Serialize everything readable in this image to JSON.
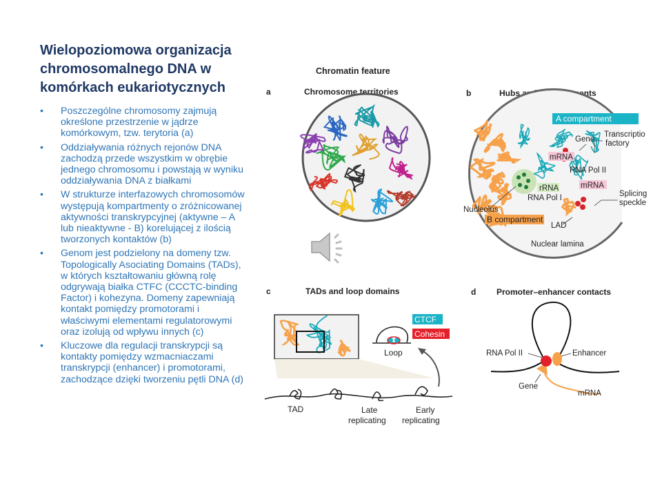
{
  "slide": {
    "title": "Wielopoziomowa organizacja chromosomalnego DNA w komórkach eukariotycznych",
    "bullet_char": "•",
    "bullets": [
      "Poszczególne chromosomy zajmują określone przestrzenie w jądrze komórkowym, tzw. terytoria (a)",
      "Oddziaływania różnych rejonów DNA zachodzą przede wszystkim w obrębie jednego chromosomu i powstają w wyniku oddziaływania DNA z białkami",
      "W strukturze interfazowych chromosomów występują kompartmenty o zróżnicowanej aktywności transkrypcyjnej (aktywne – A lub nieaktywne - B) korelującej z ilością tworzonych kontaktów (b)",
      "Genom jest podzielony na domeny tzw. Topologically Asociating Domains (TADs), w których kształtowaniu główną rolę odgrywają białka CTFC (CCCTC-binding Factor) i kohezyna. Domeny zapewniają kontakt pomiędzy promotorami i właściwymi elementami regulatorowymi oraz izolują  od wpływu innych (c)",
      "Kluczowe dla regulacji transkrypcji są kontakty pomiędzy wzmacniaczami transkrypcji (enhancer) i promotorami, zachodzące dzięki tworzeniu pętli DNA (d)"
    ]
  },
  "figure": {
    "header": "Chromatin feature",
    "panel_a": {
      "letter": "a",
      "title": "Chromosome territories"
    },
    "panel_b": {
      "letter": "b",
      "title": "Hubs and compartments",
      "a_compartment": "A compartment",
      "gene": "Gene",
      "transcription": "Transcriptio",
      "factory": "factory",
      "mrna_left": "mRNA",
      "rna_pol_ii": "RNA Pol II",
      "mrna_right": "mRNA",
      "rrna": "rRNA",
      "rna_pol_i": "RNA Pol I",
      "splicing": "Splicing",
      "speckle": "speckle",
      "nucleolus": "Nucleolus",
      "b_compartment": "B compartment",
      "lad": "LAD",
      "nuclear_lamina": "Nuclear lamina"
    },
    "panel_c": {
      "letter": "c",
      "title": "TADs and loop domains",
      "ctcf": "CTCF",
      "cohesin": "Cohesin",
      "loop": "Loop",
      "tad": "TAD",
      "late_1": "Late",
      "late_2": "replicating",
      "early_1": "Early",
      "early_2": "replicating"
    },
    "panel_d": {
      "letter": "d",
      "title": "Promoter–enhancer contacts",
      "rna_pol_ii": "RNA Pol II",
      "enhancer": "Enhancer",
      "gene": "Gene",
      "mrna": "mRNA"
    }
  },
  "colors": {
    "title": "#1f3864",
    "bullet_text": "#2e75b6",
    "cyan_label": "#1bb3c6",
    "red_label": "#e4202a",
    "orange": "#f7a14a",
    "teal": "#1aa8b8"
  },
  "icons": {
    "audio": "speaker-icon"
  }
}
